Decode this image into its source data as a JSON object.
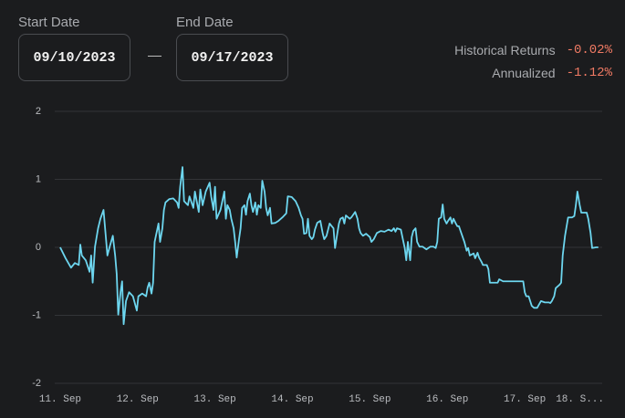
{
  "header": {
    "start_label": "Start Date",
    "start_value": "09/10/2023",
    "end_label": "End Date",
    "end_value": "09/17/2023"
  },
  "stats": [
    {
      "label": "Historical Returns",
      "value": "-0.02%"
    },
    {
      "label": "Annualized",
      "value": "-1.12%"
    }
  ],
  "chart_data": {
    "type": "line",
    "color": "#6dd6ef",
    "grid": true,
    "xlim": [
      -0.07,
      7
    ],
    "ylim": [
      -2,
      2
    ],
    "yticks": [
      2,
      1,
      0,
      -1,
      -2
    ],
    "xticks": [
      {
        "value": 0,
        "label": "11. Sep"
      },
      {
        "value": 1,
        "label": "12. Sep"
      },
      {
        "value": 2,
        "label": "13. Sep"
      },
      {
        "value": 3,
        "label": "14. Sep"
      },
      {
        "value": 4,
        "label": "15. Sep"
      },
      {
        "value": 5,
        "label": "16. Sep"
      },
      {
        "value": 6,
        "label": "17. Sep"
      },
      {
        "value": 7,
        "label": "18. S..."
      }
    ],
    "x": [
      0,
      0.07,
      0.14,
      0.19,
      0.24,
      0.26,
      0.28,
      0.33,
      0.38,
      0.4,
      0.42,
      0.45,
      0.49,
      0.52,
      0.56,
      0.59,
      0.61,
      0.64,
      0.68,
      0.71,
      0.73,
      0.75,
      0.78,
      0.8,
      0.82,
      0.85,
      0.89,
      0.94,
      0.99,
      1.01,
      1.06,
      1.11,
      1.13,
      1.15,
      1.18,
      1.2,
      1.22,
      1.27,
      1.29,
      1.32,
      1.34,
      1.36,
      1.41,
      1.46,
      1.51,
      1.53,
      1.55,
      1.58,
      1.6,
      1.65,
      1.67,
      1.72,
      1.74,
      1.79,
      1.81,
      1.84,
      1.88,
      1.93,
      1.95,
      1.98,
      2.0,
      2.02,
      2.07,
      2.12,
      2.14,
      2.16,
      2.19,
      2.21,
      2.24,
      2.26,
      2.28,
      2.31,
      2.33,
      2.35,
      2.38,
      2.4,
      2.42,
      2.45,
      2.47,
      2.49,
      2.52,
      2.54,
      2.56,
      2.59,
      2.61,
      2.64,
      2.66,
      2.68,
      2.71,
      2.73,
      2.78,
      2.82,
      2.87,
      2.92,
      2.94,
      2.99,
      3.04,
      3.08,
      3.11,
      3.13,
      3.15,
      3.18,
      3.2,
      3.22,
      3.25,
      3.27,
      3.29,
      3.32,
      3.36,
      3.39,
      3.41,
      3.44,
      3.48,
      3.53,
      3.55,
      3.58,
      3.6,
      3.62,
      3.65,
      3.67,
      3.69,
      3.74,
      3.76,
      3.81,
      3.84,
      3.86,
      3.88,
      3.91,
      3.95,
      4.0,
      4.02,
      4.05,
      4.09,
      4.14,
      4.19,
      4.24,
      4.28,
      4.31,
      4.33,
      4.35,
      4.4,
      4.42,
      4.45,
      4.47,
      4.49,
      4.52,
      4.54,
      4.56,
      4.59,
      4.61,
      4.64,
      4.68,
      4.73,
      4.78,
      4.82,
      4.85,
      4.87,
      4.89,
      4.92,
      4.94,
      4.96,
      4.99,
      5.01,
      5.04,
      5.06,
      5.08,
      5.11,
      5.13,
      5.15,
      5.18,
      5.22,
      5.25,
      5.27,
      5.29,
      5.34,
      5.36,
      5.39,
      5.41,
      5.44,
      5.46,
      5.51,
      5.53,
      5.55,
      5.6,
      5.65,
      5.67,
      5.72,
      5.76,
      5.84,
      5.88,
      5.93,
      5.98,
      6.0,
      6.02,
      6.05,
      6.09,
      6.12,
      6.16,
      6.21,
      6.26,
      6.31,
      6.33,
      6.35,
      6.38,
      6.4,
      6.45,
      6.47,
      6.49,
      6.52,
      6.56,
      6.61,
      6.64,
      6.66,
      6.68,
      6.71,
      6.73,
      6.8,
      6.82,
      6.85,
      6.87,
      6.92,
      6.95
    ],
    "values": [
      0,
      -0.16,
      -0.3,
      -0.23,
      -0.26,
      0.04,
      -0.12,
      -0.19,
      -0.36,
      -0.12,
      -0.52,
      0.01,
      0.28,
      0.42,
      0.55,
      0.15,
      -0.12,
      0.01,
      0.17,
      -0.12,
      -0.39,
      -0.99,
      -0.66,
      -0.5,
      -1.13,
      -0.79,
      -0.66,
      -0.72,
      -0.93,
      -0.72,
      -0.68,
      -0.72,
      -0.59,
      -0.52,
      -0.68,
      -0.52,
      0.08,
      0.35,
      0.08,
      0.28,
      0.55,
      0.66,
      0.71,
      0.72,
      0.66,
      0.58,
      0.89,
      1.18,
      0.68,
      0.62,
      0.75,
      0.58,
      0.82,
      0.52,
      0.85,
      0.62,
      0.82,
      0.95,
      0.75,
      0.55,
      0.89,
      0.42,
      0.55,
      0.82,
      0.42,
      0.62,
      0.55,
      0.42,
      0.28,
      0.08,
      -0.15,
      0.12,
      0.28,
      0.58,
      0.62,
      0.48,
      0.68,
      0.79,
      0.62,
      0.52,
      0.66,
      0.48,
      0.62,
      0.58,
      0.98,
      0.82,
      0.58,
      0.47,
      0.58,
      0.35,
      0.36,
      0.39,
      0.44,
      0.5,
      0.75,
      0.74,
      0.68,
      0.58,
      0.47,
      0.42,
      0.2,
      0.21,
      0.42,
      0.17,
      0.12,
      0.15,
      0.26,
      0.36,
      0.39,
      0.21,
      0.12,
      0.17,
      0.35,
      0.28,
      -0.01,
      0.21,
      0.35,
      0.42,
      0.44,
      0.35,
      0.47,
      0.42,
      0.44,
      0.52,
      0.42,
      0.28,
      0.21,
      0.17,
      0.2,
      0.15,
      0.08,
      0.12,
      0.21,
      0.24,
      0.23,
      0.26,
      0.24,
      0.28,
      0.23,
      0.28,
      0.26,
      0.15,
      -0.01,
      -0.19,
      0.08,
      -0.19,
      0.15,
      0.24,
      0.28,
      0.08,
      0.01,
      0.01,
      -0.03,
      0.01,
      0.01,
      -0.01,
      0.08,
      0.42,
      0.44,
      0.63,
      0.42,
      0.35,
      0.39,
      0.44,
      0.35,
      0.42,
      0.35,
      0.31,
      0.31,
      0.21,
      0.08,
      -0.05,
      -0.01,
      -0.12,
      -0.09,
      -0.16,
      -0.08,
      -0.15,
      -0.21,
      -0.26,
      -0.26,
      -0.32,
      -0.52,
      -0.52,
      -0.52,
      -0.47,
      -0.5,
      -0.5,
      -0.5,
      -0.5,
      -0.5,
      -0.5,
      -0.66,
      -0.72,
      -0.72,
      -0.86,
      -0.89,
      -0.89,
      -0.79,
      -0.81,
      -0.81,
      -0.82,
      -0.79,
      -0.72,
      -0.6,
      -0.55,
      -0.52,
      -0.12,
      0.17,
      0.44,
      0.44,
      0.46,
      0.62,
      0.82,
      0.62,
      0.51,
      0.51,
      0.42,
      0.21,
      -0.01,
      0,
      0
    ]
  }
}
